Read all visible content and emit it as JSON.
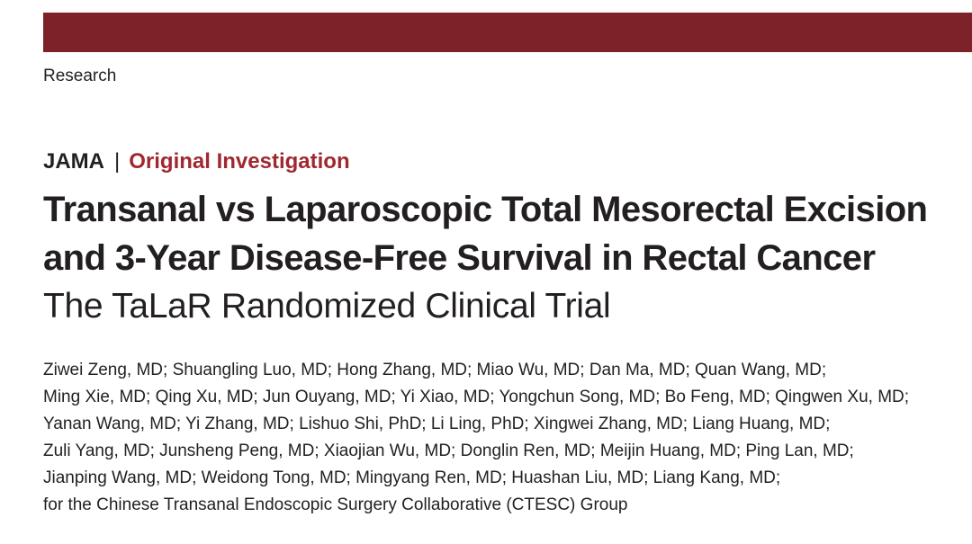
{
  "header": {
    "section_label": "Research"
  },
  "article": {
    "journal": "JAMA",
    "separator": "|",
    "article_type": "Original Investigation",
    "title_lines": [
      "Transanal vs Laparoscopic Total Mesorectal Excision",
      "and 3-Year Disease-Free Survival in Rectal Cancer"
    ],
    "subtitle": "The TaLaR Randomized Clinical Trial",
    "author_lines": [
      "Ziwei Zeng, MD; Shuangling Luo, MD; Hong Zhang, MD; Miao Wu, MD; Dan Ma, MD; Quan Wang, MD;",
      "Ming Xie, MD; Qing Xu, MD; Jun Ouyang, MD; Yi Xiao, MD; Yongchun Song, MD; Bo Feng, MD; Qingwen Xu, MD;",
      "Yanan Wang, MD; Yi Zhang, MD; Lishuo Shi, PhD; Li Ling, PhD; Xingwei Zhang, MD; Liang Huang, MD;",
      "Zuli Yang, MD; Junsheng Peng, MD; Xiaojian Wu, MD; Donglin Ren, MD; Meijin Huang, MD; Ping Lan, MD;",
      "Jianping Wang, MD; Weidong Tong, MD; Mingyang Ren, MD; Huashan Liu, MD; Liang Kang, MD;",
      "for the Chinese Transanal Endoscopic Surgery Collaborative (CTESC) Group"
    ]
  },
  "colors": {
    "top_bar": "#7c2228",
    "article_type": "#a0282f",
    "text": "#231f20"
  }
}
